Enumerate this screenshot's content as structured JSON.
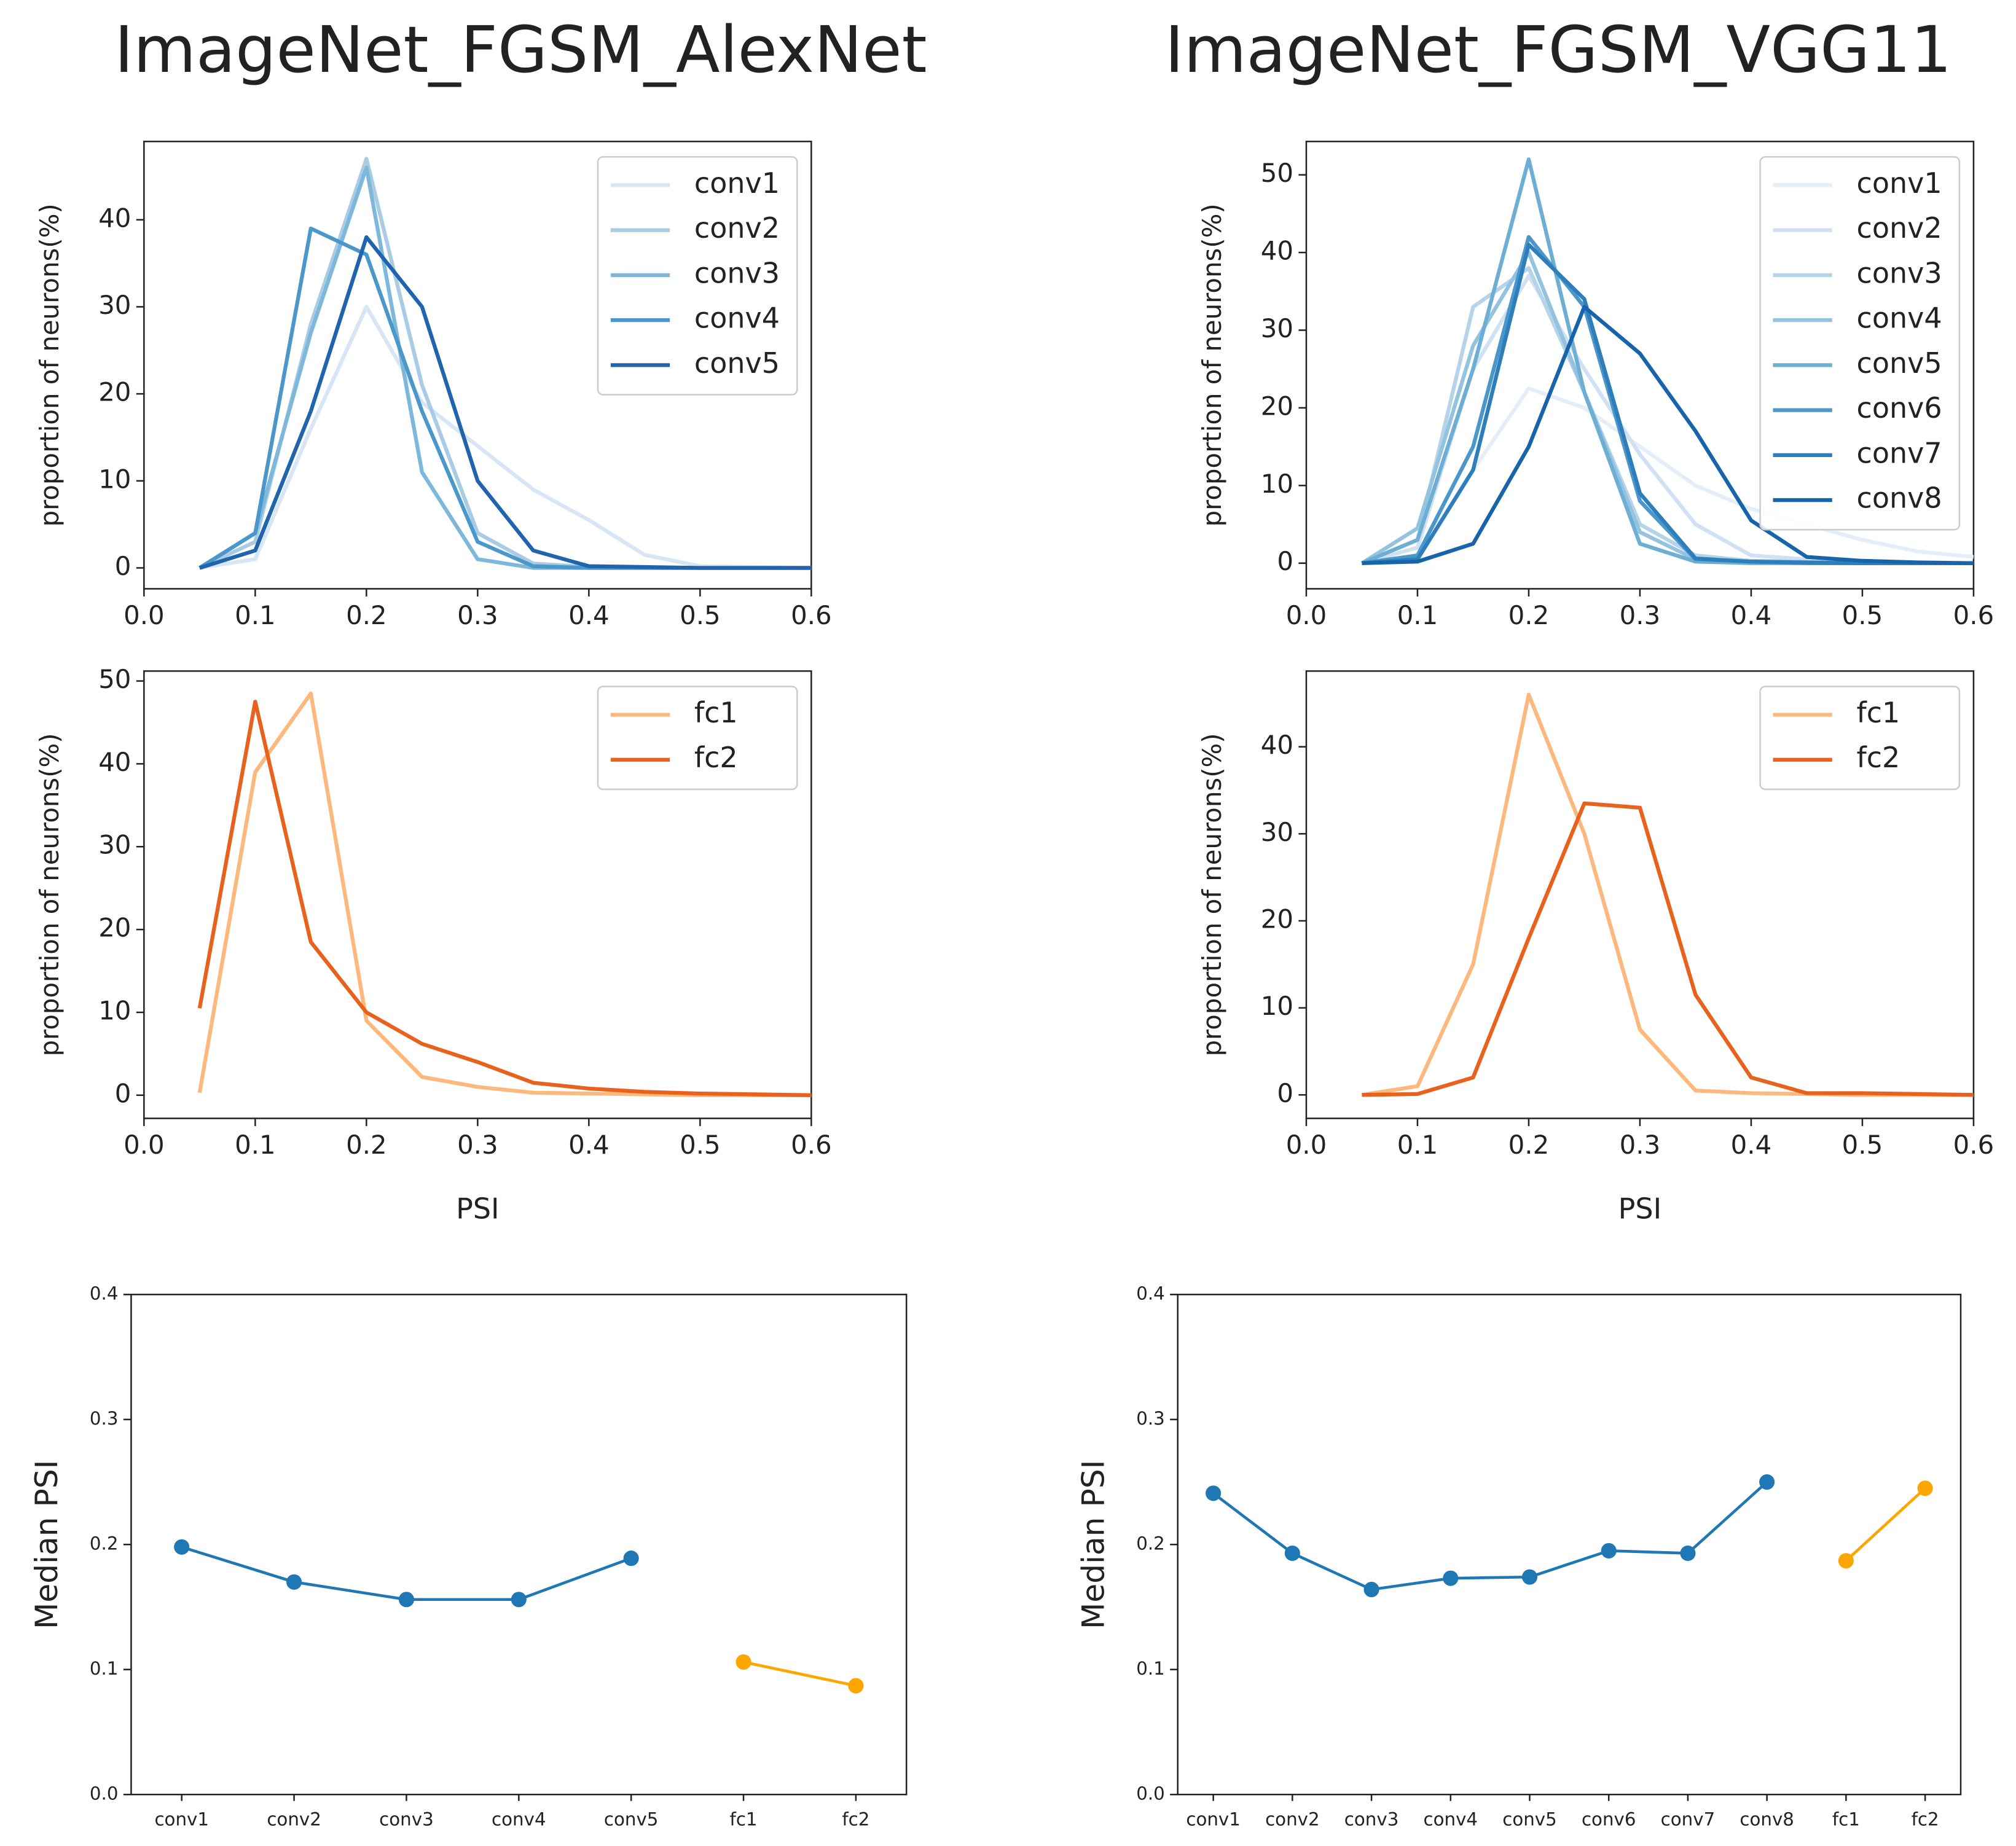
{
  "chart_data": [
    {
      "type": "line",
      "title": "ImageNet_FGSM_AlexNet",
      "ylabel": "proportion of neurons(%)",
      "x": [
        0.05,
        0.1,
        0.15,
        0.2,
        0.25,
        0.3,
        0.35,
        0.4,
        0.45,
        0.5,
        0.55,
        0.6
      ],
      "series": [
        {
          "name": "conv1",
          "color": "#d6e6f4",
          "values": [
            0,
            1,
            16,
            30,
            19,
            14,
            9,
            5.5,
            1.5,
            0.2,
            0.1,
            0
          ]
        },
        {
          "name": "conv2",
          "color": "#a9cce4",
          "values": [
            0,
            3,
            28,
            47,
            21,
            4,
            0.5,
            0.1,
            0,
            0,
            0,
            0
          ]
        },
        {
          "name": "conv3",
          "color": "#7db8da",
          "values": [
            0,
            4,
            27,
            46,
            11,
            1,
            0,
            0,
            0,
            0,
            0,
            0
          ]
        },
        {
          "name": "conv4",
          "color": "#4a98c9",
          "values": [
            0,
            4,
            39,
            36,
            18,
            3,
            0.2,
            0,
            0,
            0,
            0,
            0
          ]
        },
        {
          "name": "conv5",
          "color": "#2064ad",
          "values": [
            0,
            2,
            18,
            38,
            30,
            10,
            2,
            0.2,
            0.1,
            0,
            0,
            0
          ]
        }
      ],
      "xlim": [
        0,
        0.6
      ],
      "xticks": [
        {
          "value": 0,
          "label": "0.0"
        },
        0.1,
        0.2,
        0.3,
        0.4,
        0.5,
        0.6
      ],
      "ylim": [
        -2.4,
        49
      ],
      "yticks": [
        0,
        10,
        20,
        30,
        40
      ],
      "legend": "upper right"
    },
    {
      "type": "line",
      "title": "ImageNet_FGSM_VGG11",
      "ylabel": "proportion of neurons(%)",
      "x": [
        0.05,
        0.1,
        0.15,
        0.2,
        0.25,
        0.3,
        0.35,
        0.4,
        0.45,
        0.5,
        0.55,
        0.6
      ],
      "series": [
        {
          "name": "conv1",
          "color": "#e3eef8",
          "values": [
            0,
            1,
            12,
            22.5,
            20,
            15,
            10,
            7,
            5,
            3,
            1.5,
            0.8
          ]
        },
        {
          "name": "conv2",
          "color": "#cfe1f2",
          "values": [
            0,
            2,
            25,
            37,
            25,
            14,
            5,
            1,
            0.5,
            0.3,
            0,
            0
          ]
        },
        {
          "name": "conv3",
          "color": "#b5d4e9",
          "values": [
            0,
            3,
            33,
            38,
            22,
            5,
            1,
            0.3,
            0.2,
            0.1,
            0,
            0
          ]
        },
        {
          "name": "conv4",
          "color": "#93c3df",
          "values": [
            0,
            4.5,
            28,
            40,
            22,
            4,
            0.5,
            0.2,
            0,
            0,
            0,
            0
          ]
        },
        {
          "name": "conv5",
          "color": "#6daed5",
          "values": [
            0,
            3,
            25,
            52,
            22,
            2.5,
            0.2,
            0,
            0,
            0,
            0,
            0
          ]
        },
        {
          "name": "conv6",
          "color": "#4b97c9",
          "values": [
            0,
            1,
            15,
            42,
            33,
            8,
            0.5,
            0.2,
            0,
            0,
            0,
            0
          ]
        },
        {
          "name": "conv7",
          "color": "#2f7ebc",
          "values": [
            0,
            0.5,
            12,
            41,
            34,
            9,
            0.6,
            0.2,
            0.1,
            0,
            0,
            0
          ]
        },
        {
          "name": "conv8",
          "color": "#1864aa",
          "values": [
            0,
            0.2,
            2.5,
            15,
            33,
            27,
            17,
            5.5,
            0.8,
            0.3,
            0.1,
            0
          ]
        }
      ],
      "xlim": [
        0,
        0.6
      ],
      "xticks": [
        {
          "value": 0,
          "label": "0.0"
        },
        0.1,
        0.2,
        0.3,
        0.4,
        0.5,
        0.6
      ],
      "ylim": [
        -3.3,
        54.3
      ],
      "yticks": [
        0,
        10,
        20,
        30,
        40,
        50
      ],
      "legend": "upper right"
    },
    {
      "type": "line",
      "ylabel": "proportion of neurons(%)",
      "xlabel": "PSI",
      "x": [
        0.05,
        0.1,
        0.15,
        0.2,
        0.25,
        0.3,
        0.35,
        0.4,
        0.45,
        0.5,
        0.55,
        0.6
      ],
      "series": [
        {
          "name": "fc1",
          "color": "#fdb97d",
          "values": [
            0.3,
            39,
            48.5,
            9,
            2.2,
            1,
            0.3,
            0.2,
            0.1,
            0,
            0,
            0
          ]
        },
        {
          "name": "fc2",
          "color": "#e8621d",
          "values": [
            10.5,
            47.5,
            18.5,
            10,
            6.2,
            4,
            1.5,
            0.8,
            0.4,
            0.2,
            0.1,
            0
          ]
        }
      ],
      "xlim": [
        0,
        0.6
      ],
      "xticks": [
        {
          "value": 0,
          "label": "0.0"
        },
        0.1,
        0.2,
        0.3,
        0.4,
        0.5,
        0.6
      ],
      "ylim": [
        -2.8,
        51.2
      ],
      "yticks": [
        0,
        10,
        20,
        30,
        40,
        50
      ],
      "legend": "upper right"
    },
    {
      "type": "line",
      "ylabel": "proportion of neurons(%)",
      "xlabel": "PSI",
      "x": [
        0.05,
        0.1,
        0.15,
        0.2,
        0.25,
        0.3,
        0.35,
        0.4,
        0.45,
        0.5,
        0.55,
        0.6
      ],
      "series": [
        {
          "name": "fc1",
          "color": "#fdb97d",
          "values": [
            0,
            1,
            15,
            46,
            30,
            7.5,
            0.5,
            0.2,
            0.1,
            0,
            0,
            0
          ]
        },
        {
          "name": "fc2",
          "color": "#e8621d",
          "values": [
            0,
            0.1,
            2,
            18,
            33.5,
            33,
            11.5,
            2,
            0.2,
            0.2,
            0.1,
            0
          ]
        }
      ],
      "xlim": [
        0,
        0.6
      ],
      "xticks": [
        {
          "value": 0,
          "label": "0.0"
        },
        0.1,
        0.2,
        0.3,
        0.4,
        0.5,
        0.6
      ],
      "ylim": [
        -2.7,
        48.7
      ],
      "yticks": [
        0,
        10,
        20,
        30,
        40
      ],
      "legend": "upper right"
    },
    {
      "type": "dotline",
      "ylabel": "Median PSI",
      "categories": [
        "conv1",
        "conv2",
        "conv3",
        "conv4",
        "conv5",
        "fc1",
        "fc2"
      ],
      "series": [
        {
          "color": "#1f77b4",
          "values": [
            0.198,
            0.17,
            0.156,
            0.156,
            0.189,
            null,
            null
          ]
        },
        {
          "color": "#ffa500",
          "values": [
            null,
            null,
            null,
            null,
            null,
            0.106,
            0.087
          ]
        }
      ],
      "ylim": [
        0,
        0.4
      ],
      "yticks": [
        {
          "value": 0,
          "label": "0.0"
        },
        0.1,
        0.2,
        0.3,
        0.4
      ]
    },
    {
      "type": "dotline",
      "ylabel": "Median PSI",
      "categories": [
        "conv1",
        "conv2",
        "conv3",
        "conv4",
        "conv5",
        "conv6",
        "conv7",
        "conv8",
        "fc1",
        "fc2"
      ],
      "series": [
        {
          "color": "#1f77b4",
          "values": [
            0.241,
            0.193,
            0.164,
            0.173,
            0.174,
            0.195,
            0.193,
            0.25,
            null,
            null
          ]
        },
        {
          "color": "#ffa500",
          "values": [
            null,
            null,
            null,
            null,
            null,
            null,
            null,
            null,
            0.187,
            0.245
          ]
        }
      ],
      "ylim": [
        0,
        0.4
      ],
      "yticks": [
        {
          "value": 0,
          "label": "0.0"
        },
        0.1,
        0.2,
        0.3,
        0.4
      ]
    }
  ]
}
